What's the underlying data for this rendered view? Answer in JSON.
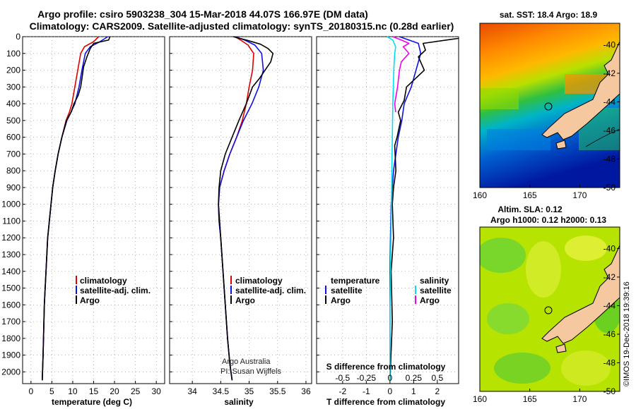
{
  "header": {
    "title_line1": "Argo profile: csiro 5903238_304 15-Mar-2018 44.07S 166.97E (DM data)",
    "title_line2": "Climatology: CARS2009. Satellite-adjusted climatology: synTS_20180315.nc (0.28d earlier)"
  },
  "chart_data": [
    {
      "id": "temperature",
      "type": "line",
      "xlabel": "temperature (deg C)",
      "xlim": [
        -2,
        32
      ],
      "xticks": [
        0,
        5,
        10,
        15,
        20,
        25,
        30
      ],
      "ylim": [
        0,
        2070
      ],
      "yticks": [
        0,
        100,
        200,
        300,
        400,
        500,
        600,
        700,
        800,
        900,
        1000,
        1100,
        1200,
        1300,
        1400,
        1500,
        1600,
        1700,
        1800,
        1900,
        2000
      ],
      "legend": {
        "position": "lower-center",
        "entries": [
          "climatology",
          "satellite-adj. clim.",
          "Argo"
        ]
      },
      "series": [
        {
          "name": "climatology",
          "color": "#e00000",
          "x": [
            16.2,
            15.0,
            12.8,
            11.9,
            11.2,
            10.5,
            9.8,
            9.2,
            8.4,
            7.4,
            6.5,
            5.8,
            5.2,
            4.8,
            4.4,
            4.0,
            3.6,
            3.4,
            3.2,
            3.0,
            2.9,
            2.7
          ],
          "y": [
            0,
            30,
            60,
            100,
            200,
            300,
            400,
            450,
            500,
            600,
            700,
            800,
            900,
            1000,
            1100,
            1200,
            1400,
            1500,
            1600,
            1800,
            1900,
            2050
          ]
        },
        {
          "name": "satellite-adj. clim.",
          "color": "#1010e0",
          "x": [
            18.4,
            16.5,
            14.2,
            13.0,
            12.2,
            11.5,
            10.5,
            9.6,
            8.6,
            7.4,
            6.5,
            5.8,
            5.2,
            4.8,
            4.4,
            4.0,
            3.6,
            3.4,
            3.2,
            3.0,
            2.9,
            2.7
          ],
          "y": [
            0,
            30,
            60,
            100,
            200,
            300,
            400,
            450,
            500,
            600,
            700,
            800,
            900,
            1000,
            1100,
            1200,
            1400,
            1500,
            1600,
            1800,
            1900,
            2050
          ]
        },
        {
          "name": "Argo",
          "color": "#000000",
          "x": [
            18.9,
            18.6,
            15.0,
            14.2,
            13.4,
            12.6,
            12.2,
            11.9,
            11.3,
            10.3,
            9.6,
            8.5,
            7.4,
            6.5,
            5.8,
            5.2,
            4.8,
            4.4,
            4.0,
            3.6,
            3.4,
            3.2,
            2.9,
            2.7
          ],
          "y": [
            0,
            20,
            40,
            70,
            120,
            180,
            250,
            300,
            350,
            400,
            450,
            500,
            600,
            700,
            800,
            900,
            1000,
            1100,
            1200,
            1400,
            1500,
            1600,
            1900,
            2050
          ]
        }
      ]
    },
    {
      "id": "salinity",
      "type": "line",
      "xlabel": "salinity",
      "xlim": [
        33.6,
        36.1
      ],
      "xticks": [
        34,
        34.5,
        35,
        35.5,
        36
      ],
      "ylim": [
        0,
        2070
      ],
      "legend": {
        "position": "lower-center",
        "entries": [
          "climatology",
          "satellite-adj. clim.",
          "Argo"
        ]
      },
      "annotations": [
        "Argo Australia",
        "PI: Susan Wijffels"
      ],
      "series": [
        {
          "name": "climatology",
          "color": "#e00000",
          "x": [
            34.75,
            34.85,
            34.98,
            35.08,
            35.06,
            35.0,
            34.95,
            34.88,
            34.78,
            34.66,
            34.56,
            34.48,
            34.46,
            34.47,
            34.5,
            34.54,
            34.58,
            34.62,
            34.66,
            34.7
          ],
          "y": [
            0,
            20,
            50,
            100,
            200,
            300,
            400,
            500,
            600,
            700,
            800,
            900,
            1000,
            1100,
            1200,
            1400,
            1600,
            1800,
            1950,
            2050
          ]
        },
        {
          "name": "satellite-adj. clim.",
          "color": "#1010e0",
          "x": [
            34.75,
            34.92,
            35.1,
            35.22,
            35.25,
            35.17,
            35.05,
            34.9,
            34.78,
            34.66,
            34.56,
            34.48,
            34.46,
            34.47,
            34.5,
            34.54,
            34.58,
            34.62,
            34.66,
            34.7
          ],
          "y": [
            0,
            20,
            50,
            100,
            200,
            300,
            400,
            500,
            600,
            700,
            800,
            900,
            1000,
            1100,
            1200,
            1400,
            1600,
            1800,
            1950,
            2050
          ]
        },
        {
          "name": "Argo",
          "color": "#000000",
          "x": [
            34.72,
            34.95,
            35.2,
            35.33,
            35.42,
            35.38,
            35.28,
            35.18,
            35.06,
            34.95,
            34.82,
            34.7,
            34.58,
            34.5,
            34.47,
            34.46,
            34.48,
            34.5,
            34.54,
            34.58,
            34.62,
            34.66,
            34.7
          ],
          "y": [
            0,
            20,
            45,
            70,
            100,
            150,
            200,
            250,
            300,
            400,
            500,
            600,
            700,
            800,
            900,
            1000,
            1100,
            1200,
            1400,
            1600,
            1800,
            1950,
            2050
          ]
        }
      ]
    },
    {
      "id": "differences",
      "type": "line",
      "xlabel": "T difference from climatology",
      "xlim": [
        -3.1,
        2.9
      ],
      "xticks": [
        -2,
        -1,
        0,
        1,
        2
      ],
      "xticklabels": [
        "-2",
        "-1",
        "0",
        "1",
        "2"
      ],
      "secondary_axis": {
        "label": "S difference from climatology",
        "ticks": [
          -0.5,
          -0.25,
          0,
          0.25,
          0.5
        ],
        "ticklabels": [
          "-0.5",
          "-0.25",
          "0",
          "0.25",
          "0.5"
        ]
      },
      "ylim": [
        0,
        2070
      ],
      "legend": {
        "position": "lower-center",
        "temperature_heading": "temperature",
        "salinity_heading": "salinity",
        "temperature_entries": [
          "satellite",
          "Argo"
        ],
        "salinity_entries": [
          "satellite",
          "Argo"
        ]
      },
      "series": [
        {
          "name": "T satellite",
          "color": "#1010e0",
          "x": [
            0.4,
            1.2,
            1.3,
            1.1,
            0.9,
            0.6,
            0.5,
            0.35,
            0.25,
            0.15,
            0.1,
            0.05,
            0.02,
            0.0,
            0.0,
            0.0
          ],
          "y": [
            0,
            40,
            100,
            200,
            300,
            400,
            500,
            600,
            700,
            800,
            900,
            1000,
            1200,
            1400,
            1700,
            2050
          ]
        },
        {
          "name": "T Argo",
          "color": "#000000",
          "x": [
            2.9,
            1.4,
            1.5,
            1.2,
            1.45,
            1.0,
            0.7,
            0.6,
            0.35,
            0.45,
            0.3,
            0.2,
            0.25,
            0.15,
            0.1,
            0.15,
            0.05,
            0.1,
            0.0
          ],
          "y": [
            10,
            40,
            80,
            120,
            200,
            260,
            300,
            380,
            450,
            500,
            600,
            650,
            800,
            900,
            1000,
            1200,
            1400,
            1700,
            2050
          ]
        },
        {
          "name": "S satellite",
          "color": "#00e0f0",
          "x": [
            -0.03,
            0.03,
            0.06,
            0.05,
            0.04,
            0.03,
            0.02,
            0.01,
            0.0,
            0.0
          ],
          "y": [
            0,
            20,
            60,
            100,
            200,
            400,
            800,
            1200,
            1600,
            2050
          ]
        },
        {
          "name": "S Argo",
          "color": "#f000f0",
          "x": [
            0.03,
            0.12,
            0.2,
            0.14,
            0.2,
            0.12,
            0.1,
            0.08,
            0.05,
            0.06
          ],
          "y": [
            0,
            20,
            40,
            60,
            100,
            150,
            200,
            300,
            400,
            450
          ]
        }
      ]
    }
  ],
  "maps": [
    {
      "id": "sst-map",
      "title": "sat. SST: 18.4 Argo: 18.9",
      "xlim": [
        160,
        174
      ],
      "ylim": [
        -50,
        -38.5
      ],
      "xticks": [
        160,
        165,
        170
      ],
      "yticks": [
        -40,
        -42,
        -44,
        -46,
        -48,
        -50
      ],
      "profile_location": {
        "lon": 166.97,
        "lat": -44.07
      },
      "colors": [
        "#f05000",
        "#ff9000",
        "#ffd000",
        "#b0e000",
        "#20c040",
        "#00b0d0",
        "#0060d0",
        "#0020a0"
      ],
      "land_color": "#f5c8a0"
    },
    {
      "id": "sla-map",
      "title_line1": "Altim. SLA: 0.12",
      "title_line2": "Argo h1000: 0.12 h2000: 0.13",
      "xlim": [
        160,
        174
      ],
      "ylim": [
        -50,
        -38.5
      ],
      "xticks": [
        160,
        165,
        170
      ],
      "yticks": [
        -40,
        -42,
        -44,
        -46,
        -48,
        -50
      ],
      "profile_location": {
        "lon": 166.97,
        "lat": -44.07
      },
      "colors": [
        "#b8e400",
        "#d8ec20",
        "#60d030",
        "#a0e000"
      ],
      "land_color": "#f5c8a0"
    }
  ],
  "credit": "©IMOS 19-Dec-2018 19:39:16"
}
